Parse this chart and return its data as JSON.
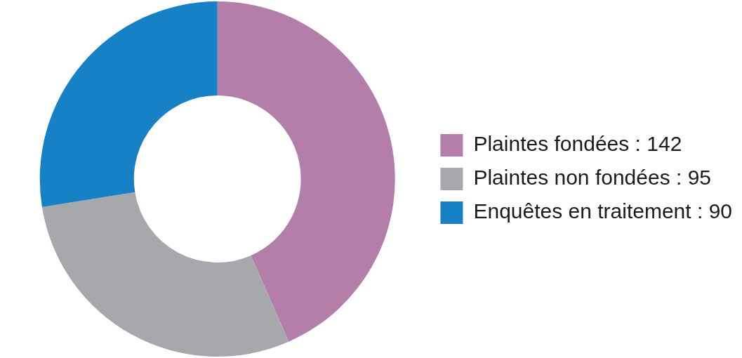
{
  "chart_data": {
    "type": "donut",
    "categories": [
      "Plaintes fondées : 142",
      "Plaintes non fondées : 95",
      "Enquêtes en traitement : 90"
    ],
    "values": [
      142,
      95,
      90
    ],
    "colors": [
      "#b37fa9",
      "#a7a8ab",
      "#1781c5"
    ],
    "legend": "right"
  }
}
